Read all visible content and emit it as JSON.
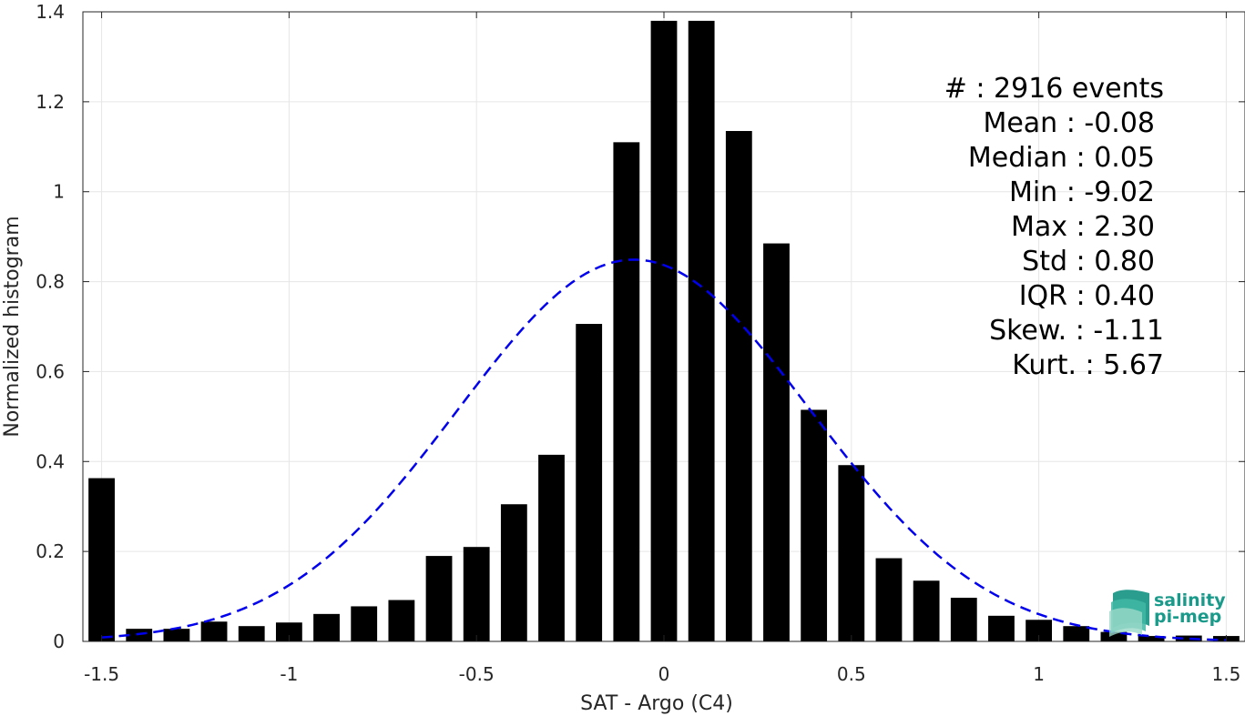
{
  "chart_data": {
    "type": "bar",
    "x_label": "SAT - Argo (C4)",
    "y_label": "Normalized histogram",
    "xlim": [
      -1.55,
      1.55
    ],
    "ylim": [
      0,
      1.4
    ],
    "x_ticks": [
      -1.5,
      -1,
      -0.5,
      0,
      0.5,
      1,
      1.5
    ],
    "x_tick_labels": [
      "-1.5",
      "-1",
      "-0.5",
      "0",
      "0.5",
      "1",
      "1.5"
    ],
    "y_ticks": [
      0,
      0.2,
      0.4,
      0.6,
      0.8,
      1,
      1.2,
      1.4
    ],
    "y_tick_labels": [
      "0",
      "0.2",
      "0.4",
      "0.6",
      "0.8",
      "1",
      "1.2",
      "1.4"
    ],
    "grid": true,
    "bar_width": 0.07,
    "bar_color": "#000000",
    "bars": {
      "x": [
        -1.5,
        -1.4,
        -1.3,
        -1.2,
        -1.1,
        -1.0,
        -0.9,
        -0.8,
        -0.7,
        -0.6,
        -0.5,
        -0.4,
        -0.3,
        -0.2,
        -0.1,
        0.0,
        0.1,
        0.2,
        0.3,
        0.4,
        0.5,
        0.6,
        0.7,
        0.8,
        0.9,
        1.0,
        1.1,
        1.2,
        1.3,
        1.4,
        1.5
      ],
      "values": [
        0.363,
        0.028,
        0.028,
        0.044,
        0.034,
        0.042,
        0.061,
        0.078,
        0.092,
        0.19,
        0.21,
        0.305,
        0.415,
        0.706,
        1.11,
        1.38,
        1.38,
        1.135,
        0.885,
        0.515,
        0.392,
        0.185,
        0.135,
        0.097,
        0.057,
        0.048,
        0.034,
        0.021,
        0.012,
        0.013,
        0.012
      ]
    },
    "fit_curve": {
      "type": "gaussian",
      "style": "dashed",
      "color": "#0000ee",
      "mean": -0.08,
      "std": 0.47,
      "peak": 0.849,
      "x_range": [
        -1.5,
        1.5
      ]
    },
    "stats_lines": [
      "#  : 2916 events",
      "Mean : -0.08",
      "Median : 0.05",
      "Min : -9.02",
      "Max : 2.30",
      "Std : 0.80",
      "IQR : 0.40",
      "Skew. : -1.11",
      "Kurt. : 5.67"
    ],
    "logo": {
      "line1": "salinity",
      "line2": "pi-mep",
      "color": "#1a9a8a"
    }
  }
}
